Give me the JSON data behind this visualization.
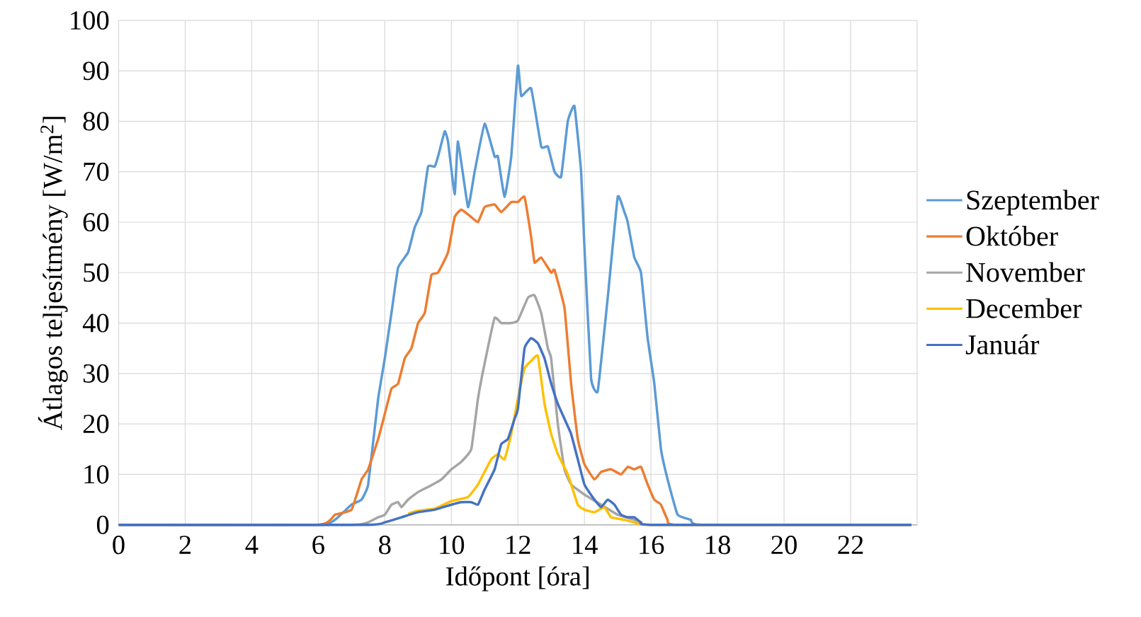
{
  "chart_data": {
    "type": "line",
    "xlabel": "Időpont [óra]",
    "ylabel": "Átlagos teljesítmény [W/m$^{2}$]",
    "xlim": [
      0,
      24
    ],
    "xticks": [
      0,
      2,
      4,
      6,
      8,
      10,
      12,
      14,
      16,
      18,
      20,
      22,
      {
        "value": 24,
        "label": null
      }
    ],
    "ylim": [
      0,
      100
    ],
    "yticks": [
      0,
      10,
      20,
      30,
      40,
      50,
      60,
      70,
      80,
      90,
      100
    ],
    "grid": true,
    "legend": "right",
    "marker": "none",
    "line_style": "solid",
    "series": [
      {
        "name": "Szeptember",
        "color": "#5b9bd5",
        "x": [
          0,
          6.0,
          6.5,
          7.0,
          7.3,
          7.5,
          7.8,
          8.0,
          8.2,
          8.4,
          8.7,
          8.9,
          9.1,
          9.3,
          9.5,
          9.6,
          9.8,
          9.9,
          10.1,
          10.2,
          10.5,
          10.7,
          11.0,
          11.3,
          11.4,
          11.6,
          11.8,
          12.0,
          12.1,
          12.4,
          12.7,
          12.9,
          13.1,
          13.3,
          13.5,
          13.7,
          13.9,
          14.0,
          14.2,
          14.4,
          14.7,
          15.0,
          15.2,
          15.3,
          15.5,
          15.7,
          15.9,
          16.1,
          16.3,
          16.5,
          16.8,
          17.2,
          17.5,
          23.83
        ],
        "values": [
          0,
          0,
          1,
          4,
          5,
          8,
          25,
          33,
          42,
          51,
          54,
          59,
          62,
          71,
          71,
          73,
          78,
          76,
          65.5,
          76,
          63,
          70,
          79.5,
          73,
          73,
          65,
          73,
          91,
          85,
          86.5,
          75,
          75,
          70,
          69,
          80,
          83,
          70,
          55,
          29,
          26.5,
          45,
          65,
          62,
          60,
          53,
          50,
          37,
          28,
          15,
          9,
          2,
          1,
          0,
          0
        ]
      },
      {
        "name": "Október",
        "color": "#ed7d31",
        "x": [
          0,
          6.0,
          6.5,
          7.0,
          7.3,
          7.5,
          7.8,
          8.0,
          8.2,
          8.4,
          8.6,
          8.8,
          9.0,
          9.2,
          9.4,
          9.6,
          9.9,
          10.1,
          10.3,
          10.6,
          10.8,
          11.0,
          11.3,
          11.5,
          11.8,
          12.0,
          12.2,
          12.4,
          12.5,
          12.7,
          13.0,
          13.1,
          13.4,
          13.6,
          13.8,
          14.0,
          14.3,
          14.5,
          14.8,
          15.1,
          15.3,
          15.5,
          15.7,
          15.9,
          16.1,
          16.3,
          16.5,
          16.8,
          23.83
        ],
        "values": [
          0,
          0,
          2,
          3,
          9,
          11,
          17,
          22,
          27,
          28,
          33,
          35,
          40,
          42,
          49.5,
          50,
          54,
          61,
          62.5,
          61,
          60,
          63,
          63.5,
          62,
          64,
          64,
          65,
          57,
          52,
          53,
          50,
          50.5,
          43,
          28,
          17,
          12,
          9,
          10.5,
          11,
          10,
          11.5,
          11,
          11.5,
          8,
          5,
          4,
          1,
          0,
          0
        ]
      },
      {
        "name": "November",
        "color": "#a5a5a5",
        "x": [
          0,
          7.0,
          7.5,
          7.8,
          8.0,
          8.2,
          8.4,
          8.5,
          8.7,
          9.0,
          9.3,
          9.7,
          10.0,
          10.3,
          10.6,
          10.8,
          11.0,
          11.3,
          11.5,
          11.8,
          12.0,
          12.3,
          12.5,
          12.7,
          12.9,
          13.0,
          13.2,
          13.4,
          13.6,
          14.0,
          14.5,
          15.0,
          15.5,
          16.0,
          23.83
        ],
        "values": [
          0,
          0,
          0.5,
          1.5,
          2,
          4,
          4.5,
          3.5,
          5,
          6.5,
          7.5,
          9,
          11,
          12.5,
          15,
          25,
          32,
          41,
          40,
          40,
          40.5,
          45,
          45.5,
          42,
          35,
          33,
          20,
          11,
          8,
          6,
          4,
          2,
          1,
          0,
          0
        ]
      },
      {
        "name": "December",
        "color": "#ffc000",
        "x": [
          8.7,
          9.0,
          9.5,
          10.0,
          10.5,
          10.8,
          11.2,
          11.4,
          11.6,
          11.8,
          12.0,
          12.2,
          12.4,
          12.6,
          12.8,
          13.0,
          13.2,
          13.5,
          13.8,
          14.0,
          14.3,
          14.6,
          14.8,
          15.2,
          15.5,
          16.0,
          23.83
        ],
        "values": [
          2.2,
          2.8,
          3.2,
          4.7,
          5.5,
          8,
          13,
          14,
          13,
          18,
          25,
          31,
          32.5,
          33.5,
          24,
          18,
          14,
          10,
          4,
          3,
          2.5,
          3.5,
          1.5,
          1,
          0.5,
          0,
          0
        ]
      },
      {
        "name": "Január",
        "color": "#4472c4",
        "x": [
          0,
          7.5,
          8.0,
          8.5,
          9.0,
          9.5,
          10.0,
          10.3,
          10.6,
          10.8,
          11.0,
          11.3,
          11.5,
          11.7,
          11.9,
          12.0,
          12.2,
          12.4,
          12.6,
          12.8,
          13.0,
          13.2,
          13.4,
          13.6,
          13.8,
          14.0,
          14.3,
          14.5,
          14.7,
          14.9,
          15.1,
          15.3,
          15.5,
          15.7,
          16.0,
          23.83
        ],
        "values": [
          0,
          0,
          0.5,
          1.5,
          2.5,
          3,
          4,
          4.5,
          4.5,
          4,
          7,
          11,
          16,
          17,
          21,
          23,
          35,
          37,
          36,
          33,
          28,
          24,
          21,
          18,
          13,
          8,
          5,
          3.5,
          5,
          4,
          2,
          1.5,
          1.5,
          0.5,
          0,
          0
        ]
      }
    ]
  }
}
